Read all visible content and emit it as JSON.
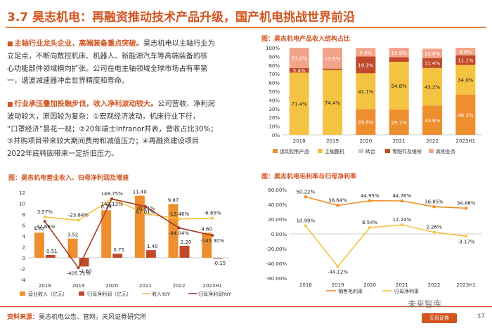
{
  "title": "3.7 昊志机电：再融资推动技术产品升级，国产机电挑战世界前沿",
  "para1": {
    "highlight": "主轴行业龙头企业，高端装备重点突破。",
    "lines": [
      "昊志机电以主轴行业为",
      "立足点，不断向数控机床、机器人、新能源汽车等高端装备的核",
      "心功能部件领域横向扩张。公司在电主轴领域全球市场占有率第",
      "一，谐波减速器冲击世界精度和寿命。"
    ]
  },
  "para2": {
    "highlight": "行业承压叠加投融步伐，收入净利波动较大。",
    "lines": [
      "公司营收、净利润",
      "波动较大，原因较为复杂：①宏观经济波动，机床行业下行，",
      "“口罩经济”昙花一现；②20年瑞士Infranor并表，营收占比30%；",
      "③并购项目带来较大期间费用和减值压力；④再融资建设项目",
      "2022年底转固带来一定折旧压力。"
    ]
  },
  "chart1_title": "图：昊志机电营业收入、归母净利润及增速",
  "chart2_title": "图：昊志机电产品收入结构占比",
  "chart3_title": "图：昊志机电毛利率与归母净利率",
  "footer_label": "资料来源：",
  "footer_text": "昊志机电公告、官网，天风证券研究所",
  "page": "37",
  "watermark": "未来智库",
  "logo": "天风证券",
  "colors": {
    "orange": "#ee8f2f",
    "red": "#a33b2a",
    "yellow": "#f5c342",
    "dark": "#c24a2b",
    "accent": "#d2541f"
  },
  "chart_data": [
    {
      "type": "bar",
      "title": "图：昊志机电营业收入、归母净利润及增速",
      "categories": [
        "2018",
        "2019",
        "2020",
        "2021",
        "2022",
        "2023H1"
      ],
      "ylim": [
        -4,
        12
      ],
      "yticks": [
        "-4",
        "-2",
        "0",
        "2",
        "4",
        "6",
        "8",
        "10",
        "12"
      ],
      "series": [
        {
          "name": "营业收入（亿元）",
          "values": [
            4.62,
            3.52,
            8.74,
            11.4,
            9.87,
            4.6
          ],
          "labels": [
            "4.62",
            "3.52",
            "8.74",
            "11.40",
            "9.87",
            "4.60"
          ]
        },
        {
          "name": "归母净利润（亿元）",
          "values": [
            0.51,
            -1.6,
            0.75,
            1.4,
            2.2,
            -0.15
          ],
          "labels": [
            "0.51",
            "-1.60",
            "0.75",
            "1.40",
            "2.20",
            "-0.15"
          ]
        }
      ],
      "line_series": [
        {
          "name": "收入YoY",
          "values": [
            3.57,
            -23.84,
            148.75,
            30.41,
            -13.46,
            -6.65
          ],
          "labels": [
            "3.57%",
            "-23.84%",
            "148.75%",
            "30.41%",
            "-13.46%",
            "-6.65%"
          ]
        },
        {
          "name": "归母净利润YoY",
          "values": [
            -32.66,
            -405.71,
            148.13,
            87.01,
            -84.04,
            -145.3
          ],
          "labels": [
            "-32.66%",
            "-405.71%",
            "148.13%",
            "87.01%",
            "-84.04%",
            "-145.30%"
          ]
        }
      ],
      "legend": [
        "营业收入（亿元）",
        "归母净利润（亿元）",
        "收入YoY",
        "归母净利润YoY"
      ]
    },
    {
      "type": "bar",
      "stacked": true,
      "title": "图：昊志机电产品收入结构占比",
      "categories": [
        "2018",
        "2019",
        "2020",
        "2021",
        "2022",
        "2023H1"
      ],
      "ylim": [
        0,
        100
      ],
      "yticks": [
        "0%",
        "10%",
        "20%",
        "30%",
        "40%",
        "50%",
        "60%",
        "70%",
        "80%",
        "90%",
        "100%"
      ],
      "series": [
        {
          "name": "运动控制产品",
          "values": [
            0,
            0,
            29.6,
            29.1,
            33.6,
            46.3
          ],
          "labels": [
            "",
            "",
            "29.6%",
            "29.1%",
            "33.6%",
            "46.3%"
          ]
        },
        {
          "name": "主轴整机",
          "values": [
            71.4,
            74.4,
            41.1,
            54.8,
            43.2,
            34.0
          ],
          "labels": [
            "71.4%",
            "74.4%",
            "41.1%",
            "54.8%",
            "43.2%",
            "34.0%"
          ]
        },
        {
          "name": "转台",
          "values": [
            0,
            0,
            0,
            0,
            0,
            0
          ],
          "labels": [
            "",
            "",
            "",
            "",
            "",
            ""
          ]
        },
        {
          "name": "零配件及维修",
          "values": [
            5.4,
            1.7,
            19.3,
            5.2,
            11.4,
            11.1
          ],
          "labels": [
            "5.4%",
            "",
            "19.3%",
            "",
            "11.4%",
            "11.1%"
          ]
        },
        {
          "name": "其他业务",
          "values": [
            23.2,
            23.9,
            9.8,
            10.9,
            10.8,
            8.6
          ],
          "labels": [
            "23.2%",
            "23.9%",
            "9.8%",
            "10.9%",
            "10.8%",
            "8.6%"
          ]
        }
      ],
      "legend": [
        "运动控制产品",
        "主轴整机",
        "转台",
        "零配件及维修",
        "其他业务"
      ]
    },
    {
      "type": "line",
      "title": "图：昊志机电毛利率与归母净利率",
      "categories": [
        "2018",
        "2019",
        "2020",
        "2021",
        "2022",
        "2023H1"
      ],
      "ylim": [
        -60,
        60
      ],
      "yticks": [
        "-60.00%",
        "-40.00%",
        "-20.00%",
        "0.00%",
        "20.00%",
        "40.00%",
        "60.00%"
      ],
      "series": [
        {
          "name": "销售毛利率",
          "values": [
            50.22,
            38.64,
            44.95,
            44.76,
            36.85,
            34.86
          ],
          "labels": [
            "50.22%",
            "38.64%",
            "44.95%",
            "44.76%",
            "36.85%",
            "34.86%"
          ]
        },
        {
          "name": "归母净利率",
          "values": [
            10.99,
            -44.12,
            8.54,
            12.24,
            2.26,
            -3.17
          ],
          "labels": [
            "10.99%",
            "-44.12%",
            "8.54%",
            "12.24%",
            "2.26%",
            "-3.17%"
          ]
        }
      ],
      "legend": [
        "销售毛利率",
        "归母净利率"
      ]
    }
  ]
}
